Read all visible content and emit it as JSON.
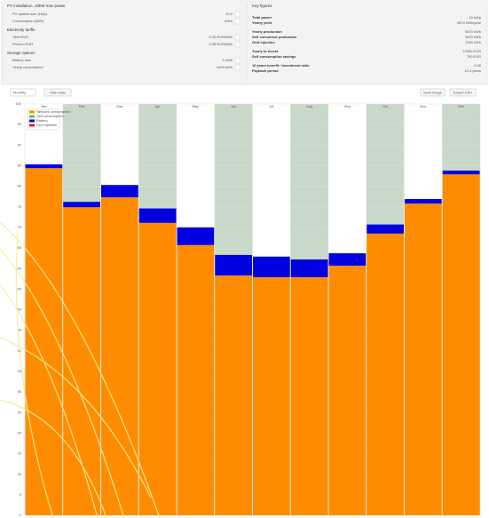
{
  "settings": {
    "title": "PV installation, 10kW max power",
    "rows": [
      {
        "label": "PV system size (kWp)",
        "value": "10.0"
      },
      {
        "label": "Consumption (kWh)",
        "value": "4000"
      }
    ],
    "tariffs_title": "Electricity tariffs",
    "tariff_rows": [
      {
        "label": "Tariff EUR",
        "value": "0.30 EUR/kWh"
      },
      {
        "label": "Feed-in EUR",
        "value": "0.08 EUR/kWh"
      }
    ],
    "storage_title": "Storage options",
    "storage_rows": [
      {
        "label": "Battery size",
        "value": "0 kWh"
      },
      {
        "label": "Yearly consumption",
        "value": "4000 kWh"
      }
    ]
  },
  "key_figures": {
    "title": "Key figures",
    "rows": [
      {
        "label": "Total power",
        "value": "10 kWp"
      },
      {
        "label": "Yearly yield",
        "value": "9870 kWh/year"
      },
      {
        "label": "Yearly production",
        "value": "9870 kWh"
      },
      {
        "label": "Self consumed production",
        "value": "2630 kWh"
      },
      {
        "label": "Grid injection",
        "value": "7240 kWh"
      },
      {
        "label": "Yearly to invest",
        "value": "12000 EUR"
      },
      {
        "label": "Self consumption savings",
        "value": "790 EUR"
      },
      {
        "label": "10 years benefit / investment ratio",
        "value": "0.96"
      },
      {
        "label": "Payback period",
        "value": "10.4 years"
      }
    ]
  },
  "toolbar": {
    "select": "Monthly",
    "button": "Hide table",
    "save": "Save image",
    "export": "Export CSV"
  },
  "chart_data": {
    "type": "stacked_bar",
    "categories": [
      "Jan",
      "Feb",
      "Mar",
      "Apr",
      "May",
      "Jun",
      "Jul",
      "Aug",
      "Sep",
      "Oct",
      "Nov",
      "Dec"
    ],
    "series": [
      {
        "name": "Network consumption",
        "color": "#ff8c00",
        "values": [
          84.4,
          74.9,
          77.3,
          71.1,
          65.7,
          58.3,
          57.9,
          57.9,
          60.7,
          68.5,
          75.8,
          82.9
        ]
      },
      {
        "name": "Battery",
        "color": "#0000e0",
        "values": [
          0.9,
          1.3,
          3.0,
          3.5,
          4.3,
          5.0,
          5.0,
          4.3,
          3.0,
          2.2,
          1.1,
          0.9
        ]
      }
    ],
    "legend_extra": [
      {
        "name": "Self consumption",
        "color": "#44cc44"
      },
      {
        "name": "Grid injection",
        "color": "#e02020"
      }
    ],
    "ylim": [
      0,
      100
    ],
    "yticks": [
      0,
      5,
      10,
      15,
      20,
      25,
      30,
      35,
      40,
      45,
      50,
      55,
      60,
      65,
      70,
      75,
      80,
      85,
      90,
      95,
      100
    ],
    "grid": true,
    "legend": "top-left"
  }
}
